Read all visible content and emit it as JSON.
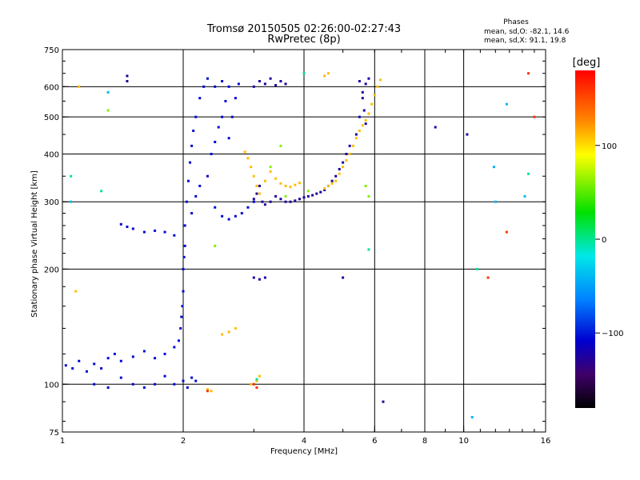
{
  "chart_data": {
    "type": "scatter",
    "title": "Tromsø 20150505 02:26:00-02:27:43",
    "subtitle": "RwPretec (8p)",
    "phase_box": {
      "heading": "Phases",
      "line1": "mean, sd,O: -82.1, 14.6",
      "line2": "mean, sd,X:  91.1, 19.8"
    },
    "xlabel": "Frequency [MHz]",
    "ylabel": "Stationary phase Virtual Height [km]",
    "x_scale": "log",
    "y_scale": "log",
    "xlim": [
      1,
      16
    ],
    "ylim": [
      75,
      750
    ],
    "x_major_ticks": [
      1,
      2,
      4,
      6,
      8,
      10,
      16
    ],
    "x_tick_labels": [
      "1",
      "2",
      "4",
      "6",
      "8",
      "10",
      "16"
    ],
    "x_grid": [
      2,
      4,
      6,
      8,
      10
    ],
    "y_major_ticks": [
      75,
      100,
      200,
      300,
      400,
      500,
      600,
      750
    ],
    "y_tick_labels": [
      "75",
      "100",
      "200",
      "300",
      "400",
      "500",
      "600",
      "750"
    ],
    "y_grid": [
      100,
      200,
      300,
      400,
      500,
      600
    ],
    "grid": true,
    "colorbar": {
      "label": "[deg]",
      "range": [
        -180,
        180
      ],
      "ticks": [
        100,
        0,
        -100
      ],
      "tick_labels": [
        "100",
        "0",
        "−100"
      ]
    },
    "series": [
      {
        "phase": -105,
        "points": [
          [
            1.02,
            112
          ],
          [
            1.06,
            110
          ],
          [
            1.1,
            115
          ],
          [
            1.15,
            108
          ],
          [
            1.2,
            113
          ],
          [
            1.25,
            110
          ],
          [
            1.3,
            117
          ],
          [
            1.35,
            120
          ],
          [
            1.4,
            115
          ],
          [
            1.5,
            118
          ],
          [
            1.6,
            122
          ],
          [
            1.7,
            117
          ],
          [
            1.8,
            120
          ],
          [
            1.9,
            125
          ],
          [
            1.95,
            130
          ],
          [
            1.97,
            140
          ],
          [
            1.98,
            150
          ],
          [
            1.99,
            160
          ],
          [
            2.0,
            175
          ],
          [
            2.0,
            200
          ],
          [
            2.01,
            215
          ],
          [
            2.02,
            230
          ],
          [
            1.9,
            245
          ],
          [
            1.8,
            250
          ],
          [
            1.7,
            252
          ],
          [
            1.6,
            250
          ],
          [
            1.5,
            255
          ],
          [
            1.45,
            258
          ],
          [
            1.4,
            262
          ],
          [
            2.02,
            260
          ],
          [
            2.04,
            300
          ],
          [
            2.06,
            340
          ],
          [
            2.08,
            380
          ],
          [
            2.1,
            420
          ],
          [
            2.12,
            460
          ],
          [
            2.15,
            500
          ],
          [
            2.2,
            560
          ],
          [
            2.25,
            600
          ],
          [
            2.3,
            630
          ],
          [
            2.1,
            280
          ],
          [
            2.15,
            310
          ],
          [
            2.2,
            330
          ],
          [
            2.3,
            350
          ],
          [
            2.35,
            400
          ],
          [
            2.4,
            430
          ],
          [
            2.45,
            470
          ],
          [
            2.5,
            500
          ],
          [
            2.55,
            550
          ],
          [
            2.6,
            600
          ],
          [
            2.4,
            290
          ],
          [
            2.5,
            275
          ],
          [
            2.6,
            270
          ],
          [
            2.7,
            275
          ],
          [
            2.8,
            280
          ],
          [
            2.9,
            290
          ],
          [
            3.0,
            300
          ],
          [
            2.15,
            102
          ],
          [
            2.1,
            104
          ],
          [
            2.05,
            98
          ],
          [
            2.0,
            102
          ],
          [
            1.9,
            100
          ],
          [
            1.8,
            105
          ],
          [
            1.7,
            100
          ],
          [
            1.6,
            98
          ],
          [
            1.5,
            100
          ],
          [
            1.4,
            104
          ],
          [
            1.3,
            98
          ],
          [
            1.2,
            100
          ],
          [
            2.6,
            440
          ],
          [
            2.65,
            500
          ],
          [
            2.7,
            560
          ],
          [
            2.75,
            610
          ],
          [
            2.5,
            620
          ],
          [
            2.4,
            600
          ]
        ]
      },
      {
        "phase": -125,
        "points": [
          [
            3.0,
            600
          ],
          [
            3.1,
            620
          ],
          [
            3.2,
            610
          ],
          [
            3.3,
            630
          ],
          [
            3.4,
            605
          ],
          [
            3.5,
            620
          ],
          [
            3.6,
            610
          ],
          [
            3.0,
            305
          ],
          [
            3.05,
            315
          ],
          [
            3.1,
            330
          ],
          [
            3.15,
            300
          ],
          [
            3.2,
            295
          ],
          [
            3.3,
            300
          ],
          [
            3.4,
            310
          ],
          [
            3.5,
            305
          ],
          [
            3.6,
            300
          ],
          [
            3.7,
            300
          ],
          [
            3.8,
            302
          ],
          [
            3.9,
            305
          ],
          [
            4.0,
            308
          ],
          [
            4.1,
            310
          ],
          [
            4.2,
            312
          ],
          [
            4.3,
            315
          ],
          [
            4.4,
            318
          ],
          [
            4.5,
            322
          ],
          [
            4.6,
            330
          ],
          [
            4.7,
            340
          ],
          [
            4.8,
            350
          ],
          [
            4.9,
            365
          ],
          [
            5.0,
            380
          ],
          [
            5.1,
            400
          ],
          [
            5.2,
            420
          ],
          [
            5.4,
            450
          ],
          [
            5.5,
            500
          ],
          [
            5.6,
            560
          ],
          [
            5.7,
            610
          ],
          [
            5.8,
            630
          ],
          [
            3.0,
            190
          ],
          [
            3.1,
            188
          ],
          [
            3.2,
            190
          ],
          [
            1.45,
            620
          ],
          [
            1.45,
            640
          ],
          [
            5.0,
            190
          ],
          [
            6.3,
            90
          ],
          [
            8.5,
            470
          ],
          [
            10.2,
            450
          ],
          [
            5.5,
            620
          ],
          [
            5.6,
            580
          ],
          [
            5.65,
            520
          ],
          [
            5.7,
            480
          ]
        ]
      },
      {
        "phase": 110,
        "points": [
          [
            2.85,
            405
          ],
          [
            2.9,
            390
          ],
          [
            2.95,
            370
          ],
          [
            3.0,
            350
          ],
          [
            3.05,
            330
          ],
          [
            3.1,
            315
          ],
          [
            3.2,
            340
          ],
          [
            3.3,
            360
          ],
          [
            3.4,
            345
          ],
          [
            3.5,
            335
          ],
          [
            3.6,
            330
          ],
          [
            3.7,
            328
          ],
          [
            3.8,
            332
          ],
          [
            3.9,
            336
          ],
          [
            4.5,
            325
          ],
          [
            4.6,
            330
          ],
          [
            4.7,
            335
          ],
          [
            4.8,
            340
          ],
          [
            4.9,
            355
          ],
          [
            5.0,
            370
          ],
          [
            5.1,
            385
          ],
          [
            5.2,
            400
          ],
          [
            5.3,
            420
          ],
          [
            5.4,
            440
          ],
          [
            5.5,
            460
          ],
          [
            5.6,
            475
          ],
          [
            5.7,
            490
          ],
          [
            5.8,
            510
          ],
          [
            5.9,
            540
          ],
          [
            6.0,
            570
          ],
          [
            6.1,
            600
          ],
          [
            6.2,
            625
          ],
          [
            2.5,
            135
          ],
          [
            2.6,
            137
          ],
          [
            2.7,
            140
          ],
          [
            3.1,
            105
          ],
          [
            3.05,
            102
          ],
          [
            2.95,
            100
          ],
          [
            2.3,
            97
          ],
          [
            2.35,
            96
          ],
          [
            4.5,
            640
          ],
          [
            4.6,
            650
          ],
          [
            1.08,
            175
          ],
          [
            1.1,
            600
          ]
        ]
      },
      {
        "phase": 60,
        "points": [
          [
            3.3,
            370
          ],
          [
            3.5,
            420
          ],
          [
            3.6,
            310
          ],
          [
            5.7,
            330
          ],
          [
            5.8,
            310
          ],
          [
            1.3,
            520
          ],
          [
            2.4,
            230
          ],
          [
            4.1,
            320
          ]
        ]
      },
      {
        "phase": 0,
        "points": [
          [
            3.05,
            103
          ],
          [
            1.05,
            350
          ],
          [
            1.25,
            320
          ],
          [
            10.8,
            200
          ],
          [
            14.5,
            355
          ],
          [
            5.8,
            225
          ],
          [
            4.0,
            650
          ]
        ]
      },
      {
        "phase": -40,
        "points": [
          [
            1.3,
            580
          ],
          [
            1.05,
            300
          ],
          [
            12.8,
            540
          ],
          [
            11.9,
            370
          ],
          [
            14.2,
            310
          ],
          [
            10.5,
            82
          ],
          [
            12.0,
            300
          ]
        ]
      },
      {
        "phase": 160,
        "points": [
          [
            3.0,
            100
          ],
          [
            3.05,
            98
          ],
          [
            2.3,
            96
          ],
          [
            14.5,
            650
          ],
          [
            12.8,
            250
          ],
          [
            15.0,
            500
          ],
          [
            11.5,
            190
          ]
        ]
      }
    ]
  }
}
